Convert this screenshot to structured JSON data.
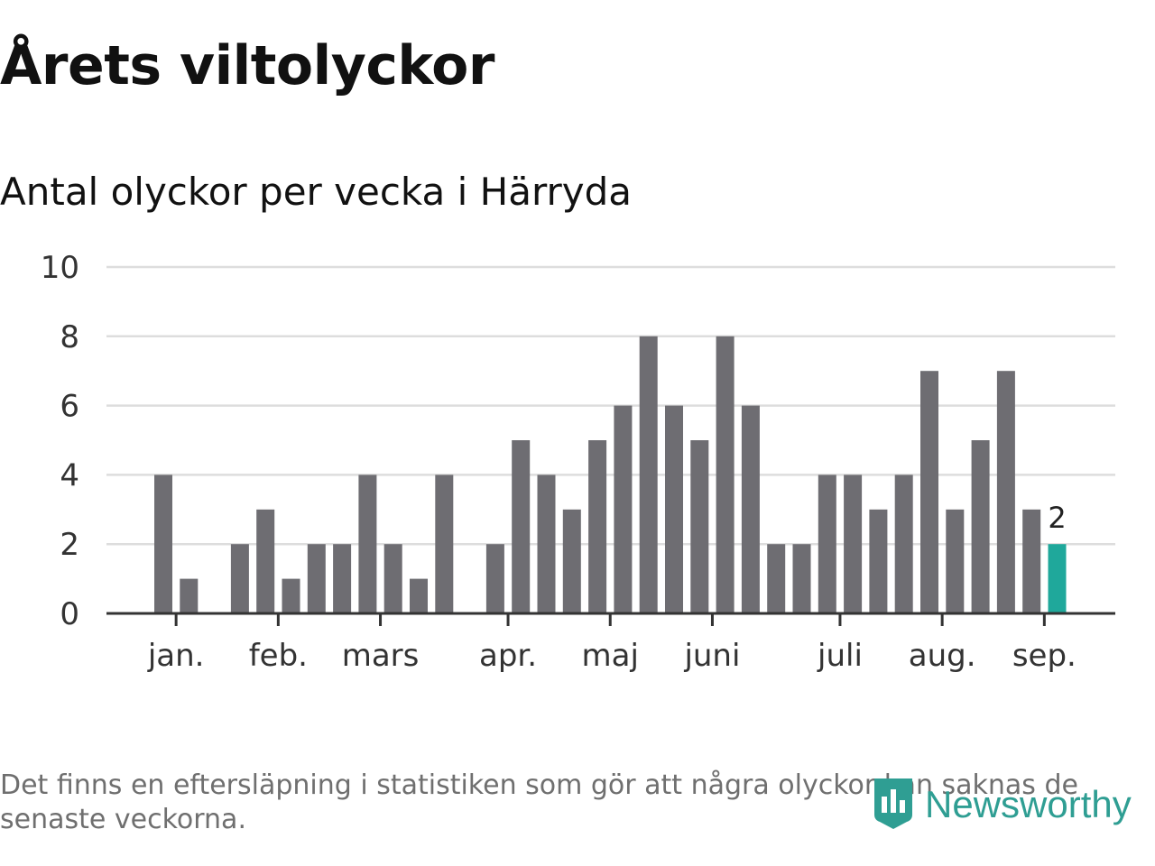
{
  "title": "Årets viltolyckor",
  "subtitle": "Antal olyckor per vecka i Härryda",
  "footnote": "Det finns en eftersläpning i statistiken som gör att några olyckor kan saknas de senaste veckorna.",
  "logo": {
    "text": "Newsworthy",
    "icon": "newsworthy-logo-icon",
    "color": "#2f9e93"
  },
  "chart_data": {
    "type": "bar",
    "ylim": [
      0,
      10
    ],
    "yticks": [
      0,
      2,
      4,
      6,
      8,
      10
    ],
    "grid": true,
    "bar_color": "#6e6d72",
    "highlight_color": "#1fa89b",
    "month_labels": [
      "jan.",
      "feb.",
      "mars",
      "apr.",
      "maj",
      "juni",
      "juli",
      "aug.",
      "sep."
    ],
    "month_label_weeks": [
      1.5,
      5.5,
      9.5,
      14.5,
      18.5,
      22.5,
      27.5,
      31.5,
      35.5
    ],
    "weeks": [
      1,
      2,
      3,
      4,
      5,
      6,
      7,
      8,
      9,
      10,
      11,
      12,
      13,
      14,
      15,
      16,
      17,
      18,
      19,
      20,
      21,
      22,
      23,
      24,
      25,
      26,
      27,
      28,
      29,
      30,
      31,
      32,
      33,
      34,
      35,
      36
    ],
    "values": [
      4,
      1,
      0,
      2,
      3,
      1,
      2,
      2,
      4,
      2,
      1,
      4,
      0,
      2,
      5,
      4,
      3,
      5,
      6,
      8,
      6,
      5,
      8,
      6,
      2,
      2,
      4,
      4,
      3,
      4,
      7,
      3,
      5,
      7,
      3,
      2
    ],
    "highlight_index": 35,
    "highlight_label": "2"
  }
}
